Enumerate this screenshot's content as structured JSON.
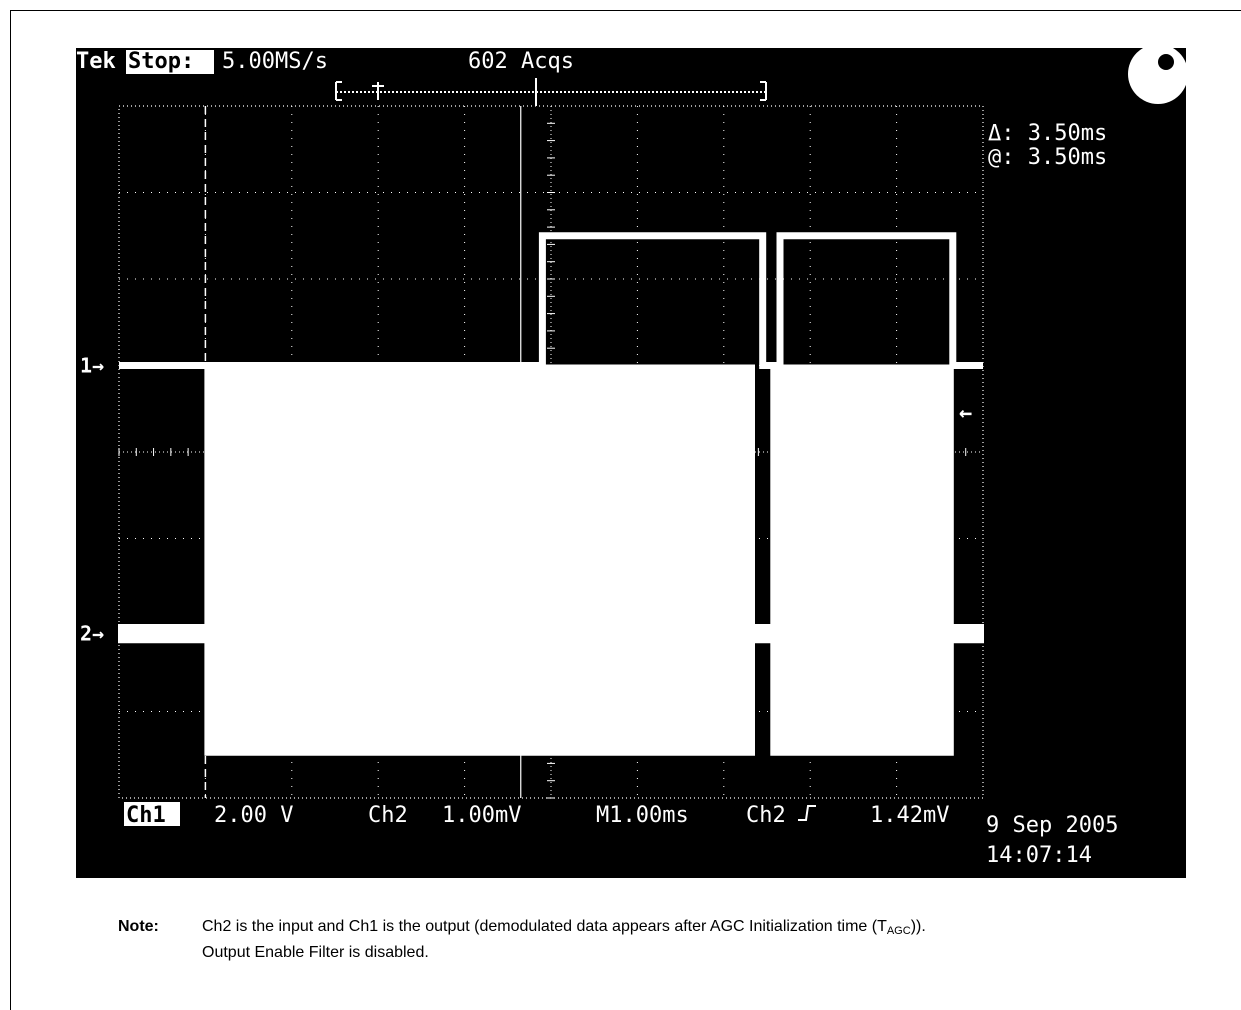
{
  "header": {
    "brand": "Tek",
    "mode": "Stop:",
    "rate": "5.00MS/s",
    "acqs": "602 Acqs"
  },
  "cursor_readout": {
    "delta": "Δ: 3.50ms",
    "at": "@: 3.50ms"
  },
  "footer": {
    "ch1_label": "Ch1",
    "ch1_scale": "2.00 V",
    "ch2_label": "Ch2",
    "ch2_scale": "1.00mV",
    "timebase": "M1.00ms",
    "trigger_source": "Ch2",
    "trigger_level": "1.42mV",
    "date": "9 Sep 2005",
    "time": "14:07:14"
  },
  "note": {
    "label": "Note:",
    "line1_prefix": "Ch2 is the input and Ch1 is the output (demodulated data appears after AGC Initialization time (T",
    "line1_sub": "AGC",
    "line1_suffix": ")).",
    "line2": "Output Enable Filter is disabled."
  },
  "chart_data": {
    "type": "line",
    "title": "",
    "xlabel": "",
    "ylabel": "",
    "x_unit": "ms",
    "xlim": [
      -5,
      5
    ],
    "ylim_divisions": [
      -4,
      4
    ],
    "grid": true,
    "series": [
      {
        "name": "1",
        "scale": "2.00 V/div",
        "ground_marker": "1→",
        "x": [
          -5.0,
          -0.1,
          -0.1,
          2.45,
          2.45,
          2.65,
          2.65,
          4.65,
          4.65,
          5.0
        ],
        "y": [
          1.0,
          1.0,
          2.5,
          2.5,
          1.0,
          1.0,
          2.5,
          2.5,
          1.0,
          1.0
        ]
      },
      {
        "name": "2",
        "scale": "1.00mV/div",
        "ground_marker": "2→",
        "x": [
          -5.0,
          -4.0,
          -4.0,
          2.35,
          2.35,
          2.55,
          2.55,
          4.65,
          4.65,
          5.0
        ],
        "y_top": [
          -2.0,
          -2.0,
          1.0,
          1.0,
          -2.0,
          -2.0,
          1.0,
          1.0,
          -2.0,
          -2.0
        ],
        "y_bottom": [
          -2.2,
          -2.2,
          -3.5,
          -3.5,
          -2.2,
          -2.2,
          -3.5,
          -3.5,
          -2.2,
          -2.2
        ]
      }
    ],
    "cursors": {
      "vertical_at": [
        -4.0
      ]
    },
    "trigger_marker": "←"
  }
}
